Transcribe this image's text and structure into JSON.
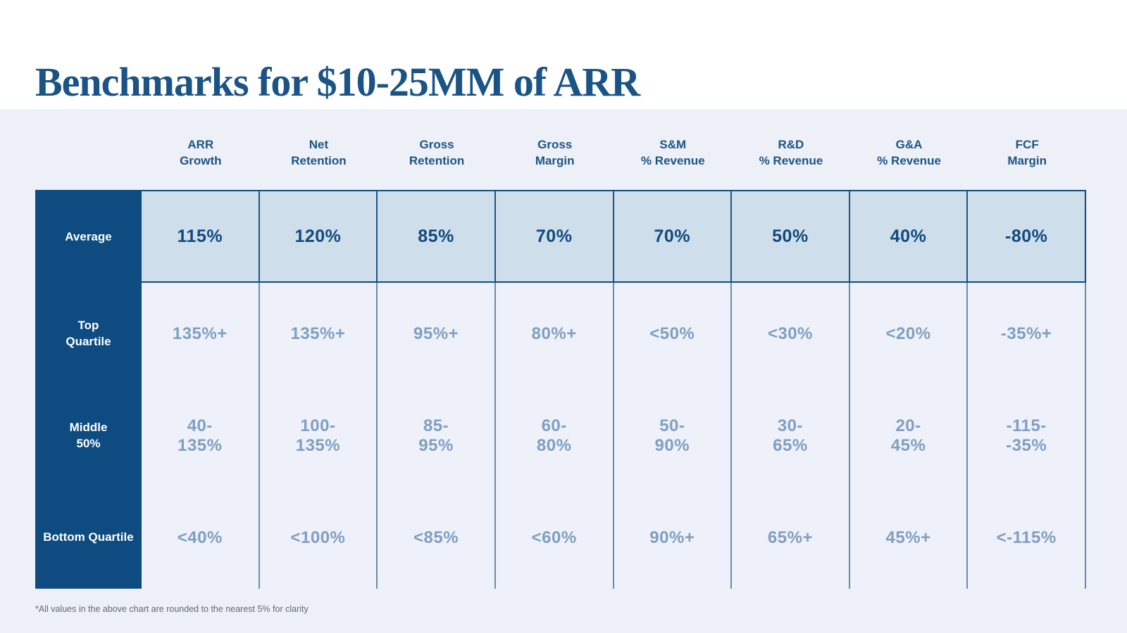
{
  "title": "Benchmarks for $10-25MM of ARR",
  "footnote": "*All values in the above chart are rounded to the nearest 5% for clarity",
  "colors": {
    "navy": "#0e4b80",
    "title_navy": "#1a5385",
    "header_text": "#1c5486",
    "average_row_bg": "#cfdeeb",
    "average_value_text": "#114a7f",
    "muted_value_text": "#7f9fc2",
    "divider_slate": "#6b8cad",
    "rows_bg": "#eef1f9",
    "page_bg": "#edf0f6",
    "top_band_bg": "#ffffff"
  },
  "table": {
    "headers": [
      "ARR\nGrowth",
      "Net\nRetention",
      "Gross\nRetention",
      "Gross\nMargin",
      "S&M\n% Revenue",
      "R&D\n% Revenue",
      "G&A\n% Revenue",
      "FCF\nMargin"
    ],
    "row_labels": [
      "Average",
      "Top\nQuartile",
      "Middle\n50%",
      "Bottom Quartile"
    ],
    "rows": {
      "average": [
        "115%",
        "120%",
        "85%",
        "70%",
        "70%",
        "50%",
        "40%",
        "-80%"
      ],
      "top_quartile": [
        "135%+",
        "135%+",
        "95%+",
        "80%+",
        "<50%",
        "<30%",
        "<20%",
        "-35%+"
      ],
      "middle_50": [
        "40-\n135%",
        "100-\n135%",
        "85-\n95%",
        "60-\n80%",
        "50-\n90%",
        "30-\n65%",
        "20-\n45%",
        "-115-\n-35%"
      ],
      "bottom_quartile": [
        "<40%",
        "<100%",
        "<85%",
        "<60%",
        "90%+",
        "65%+",
        "45%+",
        "<-115%"
      ]
    }
  },
  "chart_data": {
    "type": "table",
    "title": "Benchmarks for $10-25MM of ARR",
    "columns": [
      "ARR Growth",
      "Net Retention",
      "Gross Retention",
      "Gross Margin",
      "S&M % Revenue",
      "R&D % Revenue",
      "G&A % Revenue",
      "FCF Margin"
    ],
    "rows": [
      {
        "label": "Average",
        "values": [
          "115%",
          "120%",
          "85%",
          "70%",
          "70%",
          "50%",
          "40%",
          "-80%"
        ]
      },
      {
        "label": "Top Quartile",
        "values": [
          "135%+",
          "135%+",
          "95%+",
          "80%+",
          "<50%",
          "<30%",
          "<20%",
          "-35%+"
        ]
      },
      {
        "label": "Middle 50%",
        "values": [
          "40-135%",
          "100-135%",
          "85-95%",
          "60-80%",
          "50-90%",
          "30-65%",
          "20-45%",
          "-115--35%"
        ]
      },
      {
        "label": "Bottom Quartile",
        "values": [
          "<40%",
          "<100%",
          "<85%",
          "<60%",
          "90%+",
          "65%+",
          "45%+",
          "<-115%"
        ]
      }
    ],
    "footnote": "*All values in the above chart are rounded to the nearest 5% for clarity",
    "layout": {
      "grid": "vertical dividers only",
      "highlight_row": "Average"
    }
  }
}
